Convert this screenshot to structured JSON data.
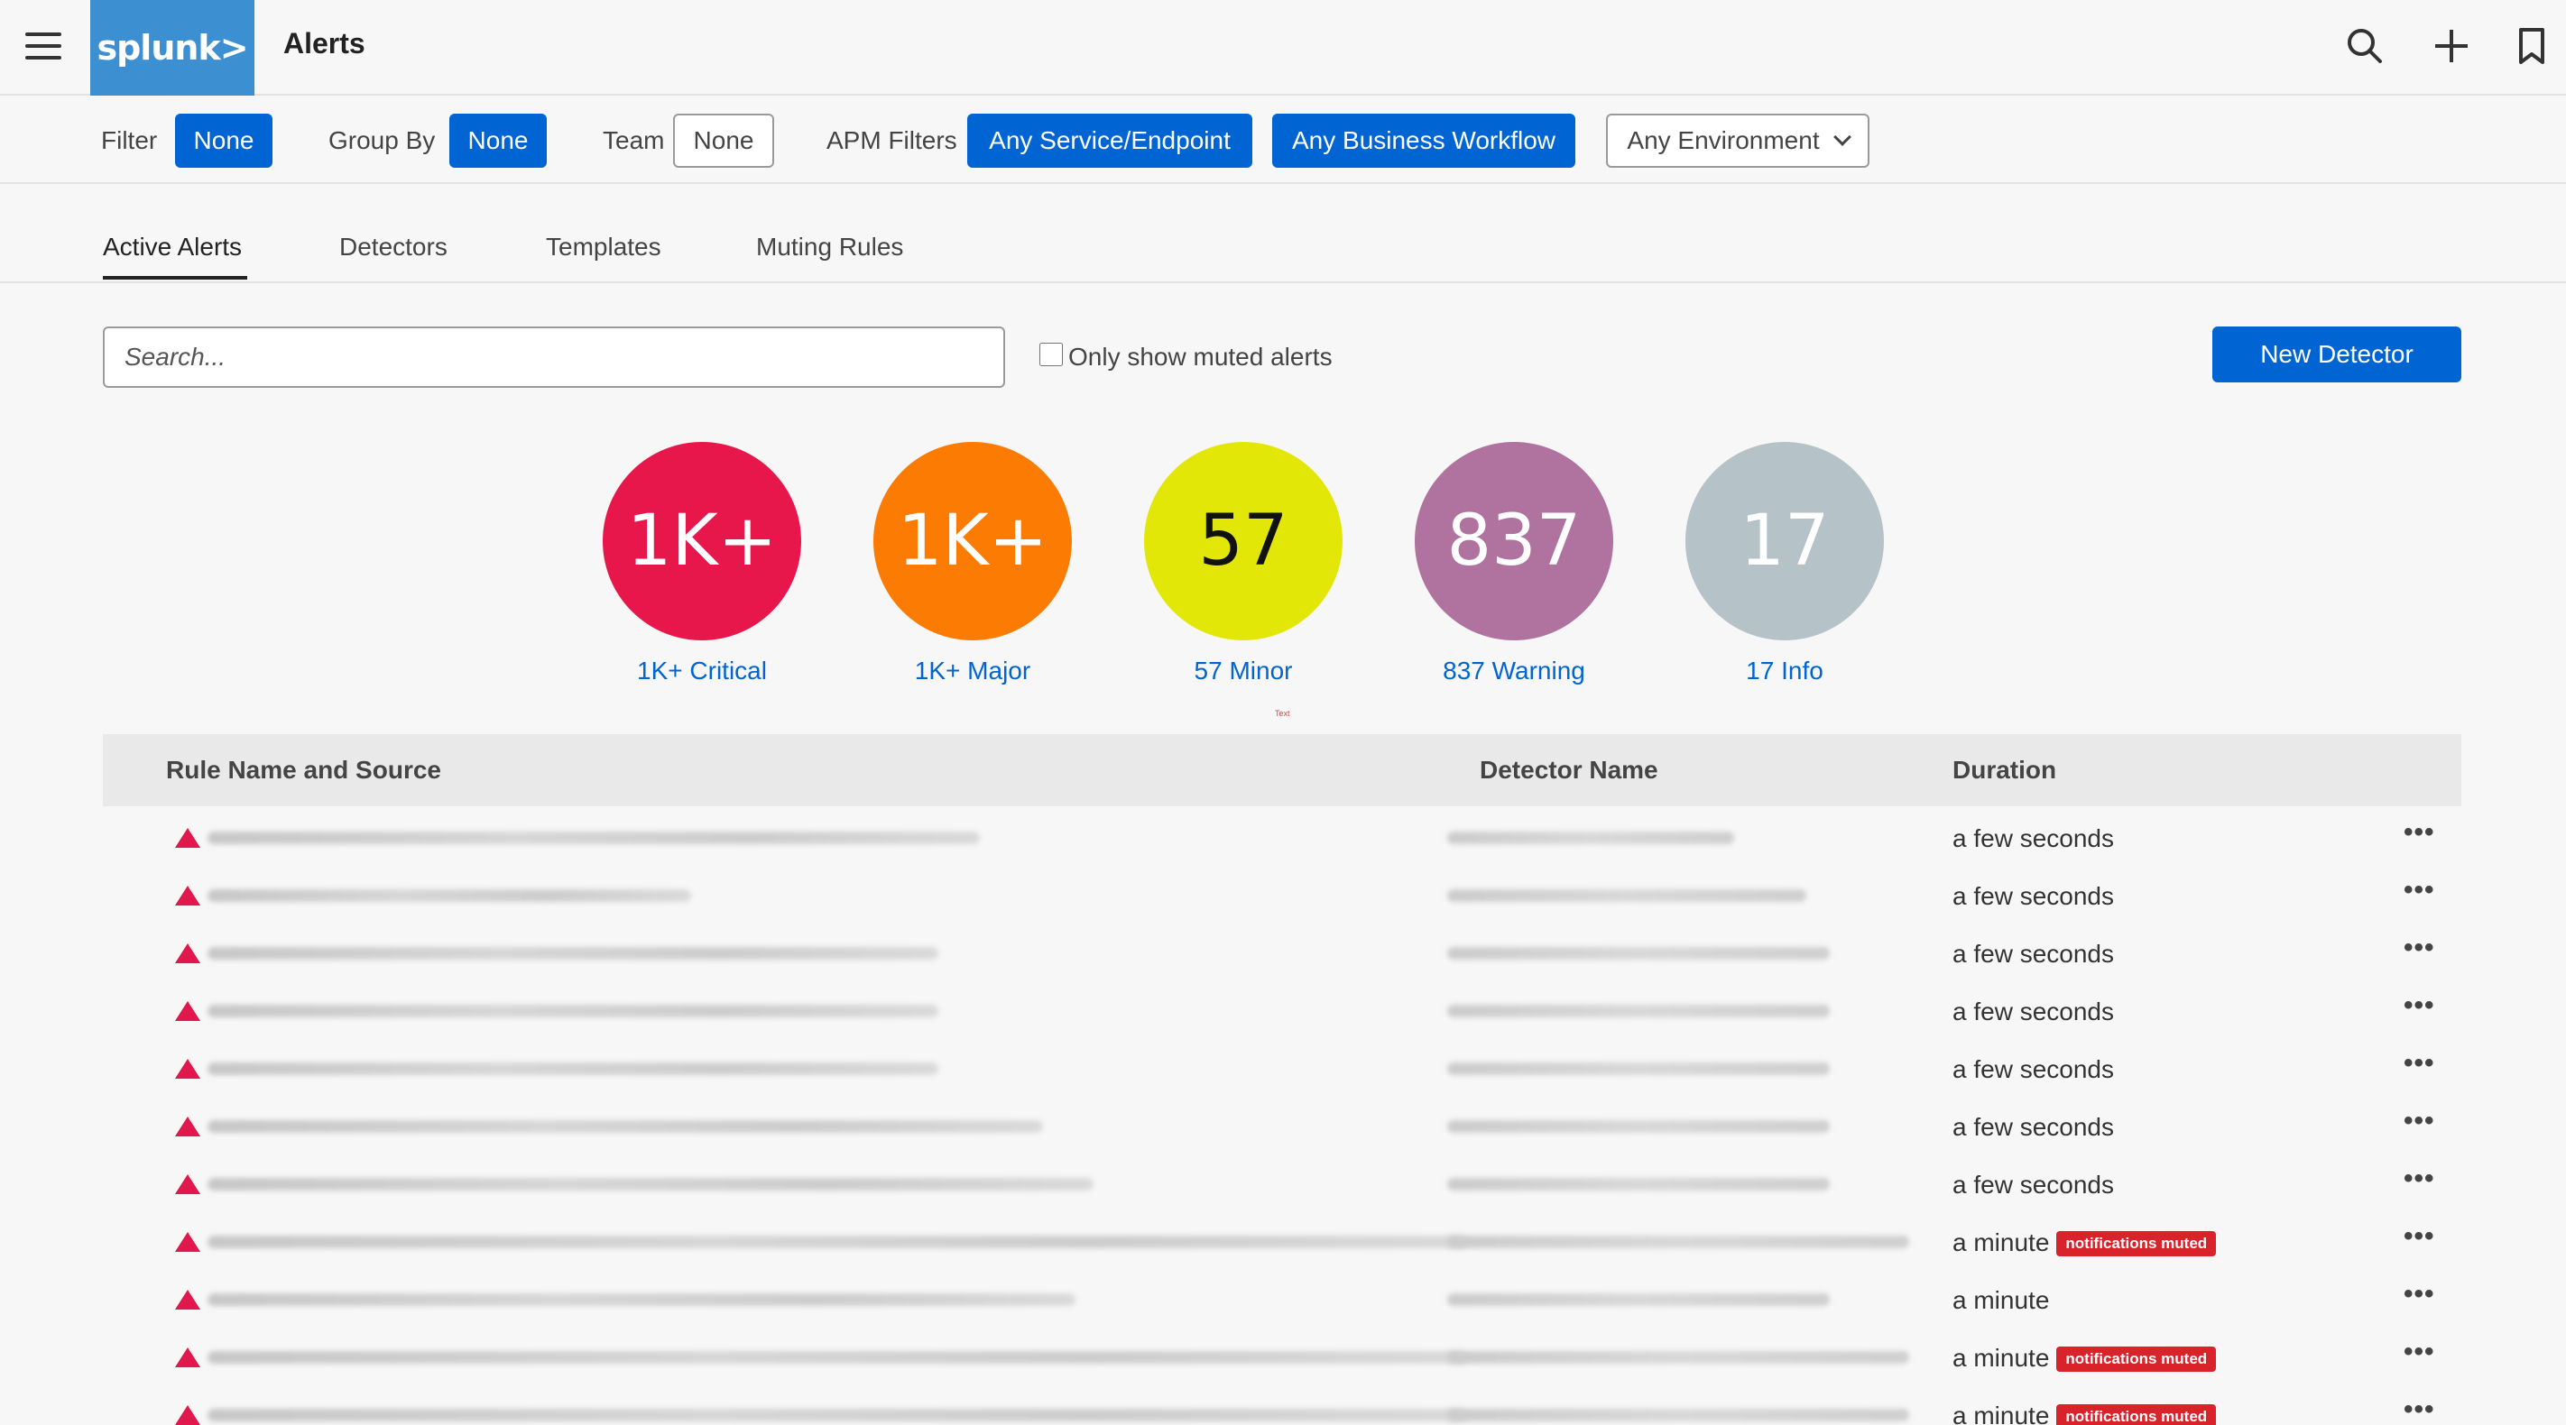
{
  "header": {
    "logo_text": "splunk>",
    "title": "Alerts",
    "icons": [
      "search-icon",
      "plus-icon",
      "bookmark-icon"
    ]
  },
  "filters": {
    "filter_label": "Filter",
    "filter_value": "None",
    "groupby_label": "Group By",
    "groupby_value": "None",
    "team_label": "Team",
    "team_value": "None",
    "apm_label": "APM Filters",
    "apm_service": "Any Service/Endpoint",
    "apm_workflow": "Any Business Workflow",
    "environment": "Any Environment"
  },
  "tabs": [
    {
      "label": "Active Alerts",
      "active": true
    },
    {
      "label": "Detectors",
      "active": false
    },
    {
      "label": "Templates",
      "active": false
    },
    {
      "label": "Muting Rules",
      "active": false
    }
  ],
  "search": {
    "placeholder": "Search...",
    "muted_only_label": "Only show muted alerts",
    "muted_only_checked": false,
    "new_detector_label": "New Detector"
  },
  "severity": [
    {
      "value": "1K+",
      "label": "1K+ Critical",
      "color": "#e8174b",
      "text_color": "#ffffff"
    },
    {
      "value": "1K+",
      "label": "1K+ Major",
      "color": "#fb7b03",
      "text_color": "#ffffff"
    },
    {
      "value": "57",
      "label": "57 Minor",
      "color": "#e2e708",
      "text_color": "#111111"
    },
    {
      "value": "837",
      "label": "837 Warning",
      "color": "#b0729f",
      "text_color": "#ffffff"
    },
    {
      "value": "17",
      "label": "17 Info",
      "color": "#b5c2c7",
      "text_color": "#ffffff"
    }
  ],
  "tiny_text": "Text",
  "table": {
    "headers": {
      "rule": "Rule Name and Source",
      "detector": "Detector Name",
      "duration": "Duration"
    },
    "rows": [
      {
        "duration": "a few seconds",
        "muted": false
      },
      {
        "duration": "a few seconds",
        "muted": false
      },
      {
        "duration": "a few seconds",
        "muted": false
      },
      {
        "duration": "a few seconds",
        "muted": false
      },
      {
        "duration": "a few seconds",
        "muted": false
      },
      {
        "duration": "a few seconds",
        "muted": false
      },
      {
        "duration": "a few seconds",
        "muted": false
      },
      {
        "duration": "a minute",
        "muted": true
      },
      {
        "duration": "a minute",
        "muted": false
      },
      {
        "duration": "a minute",
        "muted": true
      },
      {
        "duration": "a minute",
        "muted": true
      }
    ],
    "muted_badge": "notifications muted",
    "severity_color": "#e0184c"
  }
}
